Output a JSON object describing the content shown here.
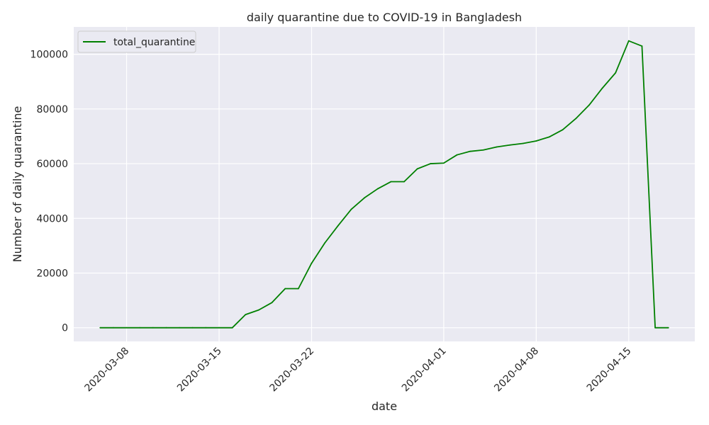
{
  "chart_data": {
    "type": "line",
    "title": "daily quarantine due to COVID-19 in Bangladesh",
    "xlabel": "date",
    "ylabel": "Number of daily quarantine",
    "xlim": [
      "2020-03-04",
      "2020-04-20"
    ],
    "ylim": [
      -5000,
      110000
    ],
    "x_ticks": [
      "2020-03-08",
      "2020-03-15",
      "2020-03-22",
      "2020-04-01",
      "2020-04-08",
      "2020-04-15"
    ],
    "y_ticks": [
      0,
      20000,
      40000,
      60000,
      80000,
      100000
    ],
    "grid": true,
    "legend_position": "top-left",
    "series": [
      {
        "name": "total_quarantine",
        "color": "#008000",
        "x": [
          "2020-03-06",
          "2020-03-07",
          "2020-03-08",
          "2020-03-09",
          "2020-03-10",
          "2020-03-11",
          "2020-03-12",
          "2020-03-13",
          "2020-03-14",
          "2020-03-15",
          "2020-03-16",
          "2020-03-17",
          "2020-03-18",
          "2020-03-19",
          "2020-03-20",
          "2020-03-21",
          "2020-03-22",
          "2020-03-23",
          "2020-03-24",
          "2020-03-25",
          "2020-03-26",
          "2020-03-27",
          "2020-03-28",
          "2020-03-29",
          "2020-03-30",
          "2020-03-31",
          "2020-04-01",
          "2020-04-02",
          "2020-04-03",
          "2020-04-04",
          "2020-04-05",
          "2020-04-06",
          "2020-04-07",
          "2020-04-08",
          "2020-04-09",
          "2020-04-10",
          "2020-04-11",
          "2020-04-12",
          "2020-04-13",
          "2020-04-14",
          "2020-04-15",
          "2020-04-16",
          "2020-04-17",
          "2020-04-18"
        ],
        "values": [
          0,
          0,
          0,
          0,
          0,
          0,
          0,
          0,
          0,
          0,
          0,
          4800,
          6500,
          9200,
          14300,
          14300,
          23600,
          31000,
          37300,
          43300,
          47500,
          50800,
          53400,
          53400,
          58100,
          60000,
          60200,
          63200,
          64500,
          65000,
          66100,
          66800,
          67400,
          68300,
          69800,
          72400,
          76500,
          81400,
          87600,
          93200,
          104900,
          103000,
          0,
          0
        ]
      }
    ]
  }
}
